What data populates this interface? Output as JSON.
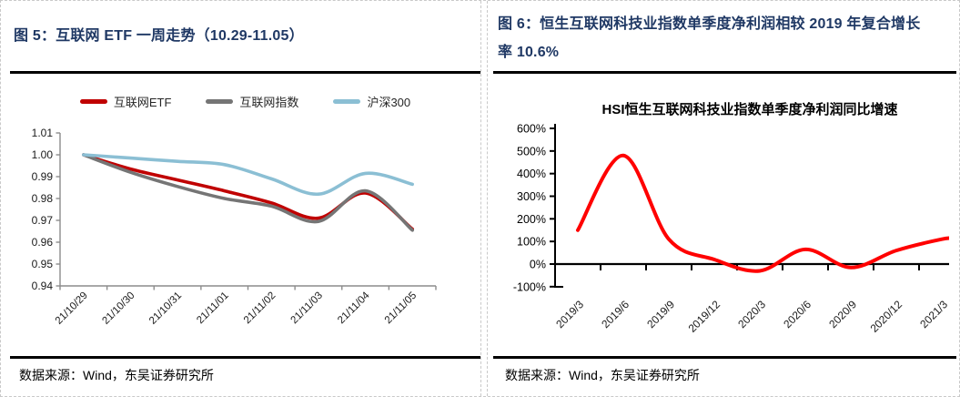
{
  "page": {
    "left_panel": {
      "figure_title": "图 5：互联网 ETF 一周走势（10.29-11.05）",
      "source_note": "数据来源：Wind，东吴证券研究所"
    },
    "right_panel": {
      "figure_title": "图 6：恒生互联网科技业指数单季度净利润相较 2019 年复合增长率 10.6%",
      "source_note": "数据来源：Wind，东吴证券研究所"
    }
  },
  "colors": {
    "title_navy": "#1F3864",
    "rule_black": "#000000",
    "dashed_border": "#C9C9C9",
    "axis_gray": "#8C8C8C",
    "axis_black": "#000000",
    "etf_red": "#C00000",
    "index_gray": "#757575",
    "hs300_blue": "#8BBFD4",
    "hsi_red": "#FF0000"
  },
  "chart_data": [
    {
      "type": "line",
      "title": "",
      "categories": [
        "21/10/29",
        "21/10/30",
        "21/10/31",
        "21/11/01",
        "21/11/02",
        "21/11/03",
        "21/11/04",
        "21/11/05"
      ],
      "series": [
        {
          "name": "互联网ETF",
          "color": "#C00000",
          "values": [
            1.0,
            0.9935,
            0.9885,
            0.9835,
            0.978,
            0.971,
            0.9825,
            0.966
          ]
        },
        {
          "name": "互联网指数",
          "color": "#757575",
          "values": [
            1.0,
            0.992,
            0.9855,
            0.98,
            0.9765,
            0.9695,
            0.9835,
            0.9655
          ]
        },
        {
          "name": "沪深300",
          "color": "#8BBFD4",
          "values": [
            1.0,
            0.9985,
            0.997,
            0.9955,
            0.989,
            0.982,
            0.9915,
            0.9865
          ]
        }
      ],
      "ylim": [
        0.94,
        1.01
      ],
      "ytick_step": 0.01,
      "ytick_format": "2dp",
      "legend_position": "top",
      "grid": false,
      "smooth": true
    },
    {
      "type": "line",
      "title": "HSI恒生互联网科技业指数单季度净利润同比增速",
      "categories": [
        "2019/3",
        "2019/6",
        "2019/9",
        "2019/12",
        "2020/3",
        "2020/6",
        "2020/9",
        "2020/12",
        "2021/3"
      ],
      "series": [
        {
          "name": "单季度净利润同比增速",
          "color": "#FF0000",
          "values": [
            150,
            480,
            110,
            20,
            -30,
            65,
            -15,
            60,
            110
          ]
        }
      ],
      "ylim": [
        -100,
        600
      ],
      "ytick_step": 100,
      "ytick_format": "percent",
      "legend_position": "none",
      "grid": false,
      "smooth": true
    }
  ]
}
